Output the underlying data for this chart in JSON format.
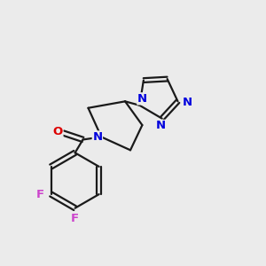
{
  "background_color": "#ebebeb",
  "bond_color": "#1a1a1a",
  "bond_width": 1.6,
  "atom_colors": {
    "N": "#0000dd",
    "O": "#dd0000",
    "F": "#cc44cc"
  },
  "font_size": 9.5
}
